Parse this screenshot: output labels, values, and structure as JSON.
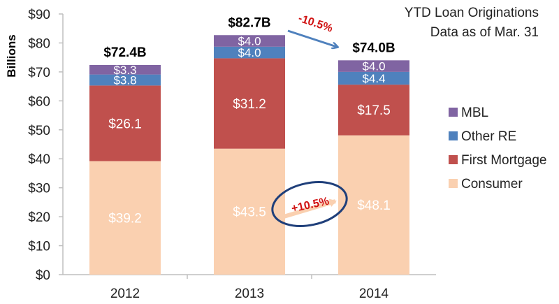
{
  "chart_data": {
    "type": "bar",
    "stacked": true,
    "title": "YTD Loan Originations",
    "subtitle": "Data as of Mar. 31",
    "xlabel": "",
    "ylabel": "Billions",
    "ylim": [
      0,
      90
    ],
    "ytick_step": 10,
    "ytick_prefix": "$",
    "categories": [
      "2012",
      "2013",
      "2014"
    ],
    "series": [
      {
        "name": "Consumer",
        "color": "#FAD0B0",
        "values": [
          39.2,
          43.5,
          48.1
        ],
        "labels": [
          "$39.2",
          "$43.5",
          "$48.1"
        ],
        "label_color": "#222222"
      },
      {
        "name": "First Mortgage",
        "color": "#C0504D",
        "values": [
          26.1,
          31.2,
          17.5
        ],
        "labels": [
          "$26.1",
          "$31.2",
          "$17.5"
        ],
        "label_color": "#ffffff"
      },
      {
        "name": "Other RE",
        "color": "#4F81BD",
        "values": [
          3.8,
          4.0,
          4.4
        ],
        "labels": [
          "$3.8",
          "$4.0",
          "$4.4"
        ],
        "label_color": "#ffffff"
      },
      {
        "name": "MBL",
        "color": "#8064A2",
        "values": [
          3.3,
          4.0,
          4.0
        ],
        "labels": [
          "$3.3",
          "$4.0",
          "$4.0"
        ],
        "label_color": "#ffffff"
      }
    ],
    "totals": [
      "$72.4B",
      "$82.7B",
      "$74.0B"
    ],
    "legend": {
      "position": "right",
      "order": [
        "MBL",
        "Other RE",
        "First Mortgage",
        "Consumer"
      ]
    },
    "grid": false,
    "annotations": [
      {
        "text": "-10.5%",
        "from": "2013",
        "to": "2014",
        "about": "total",
        "arrow_color": "#4F81BD"
      },
      {
        "text": "+10.5%",
        "from": "2013",
        "to": "2014",
        "about": "Consumer",
        "arrow_color": "#FAD0B0",
        "circled": true,
        "circle_color": "#1F3F7A"
      }
    ]
  }
}
